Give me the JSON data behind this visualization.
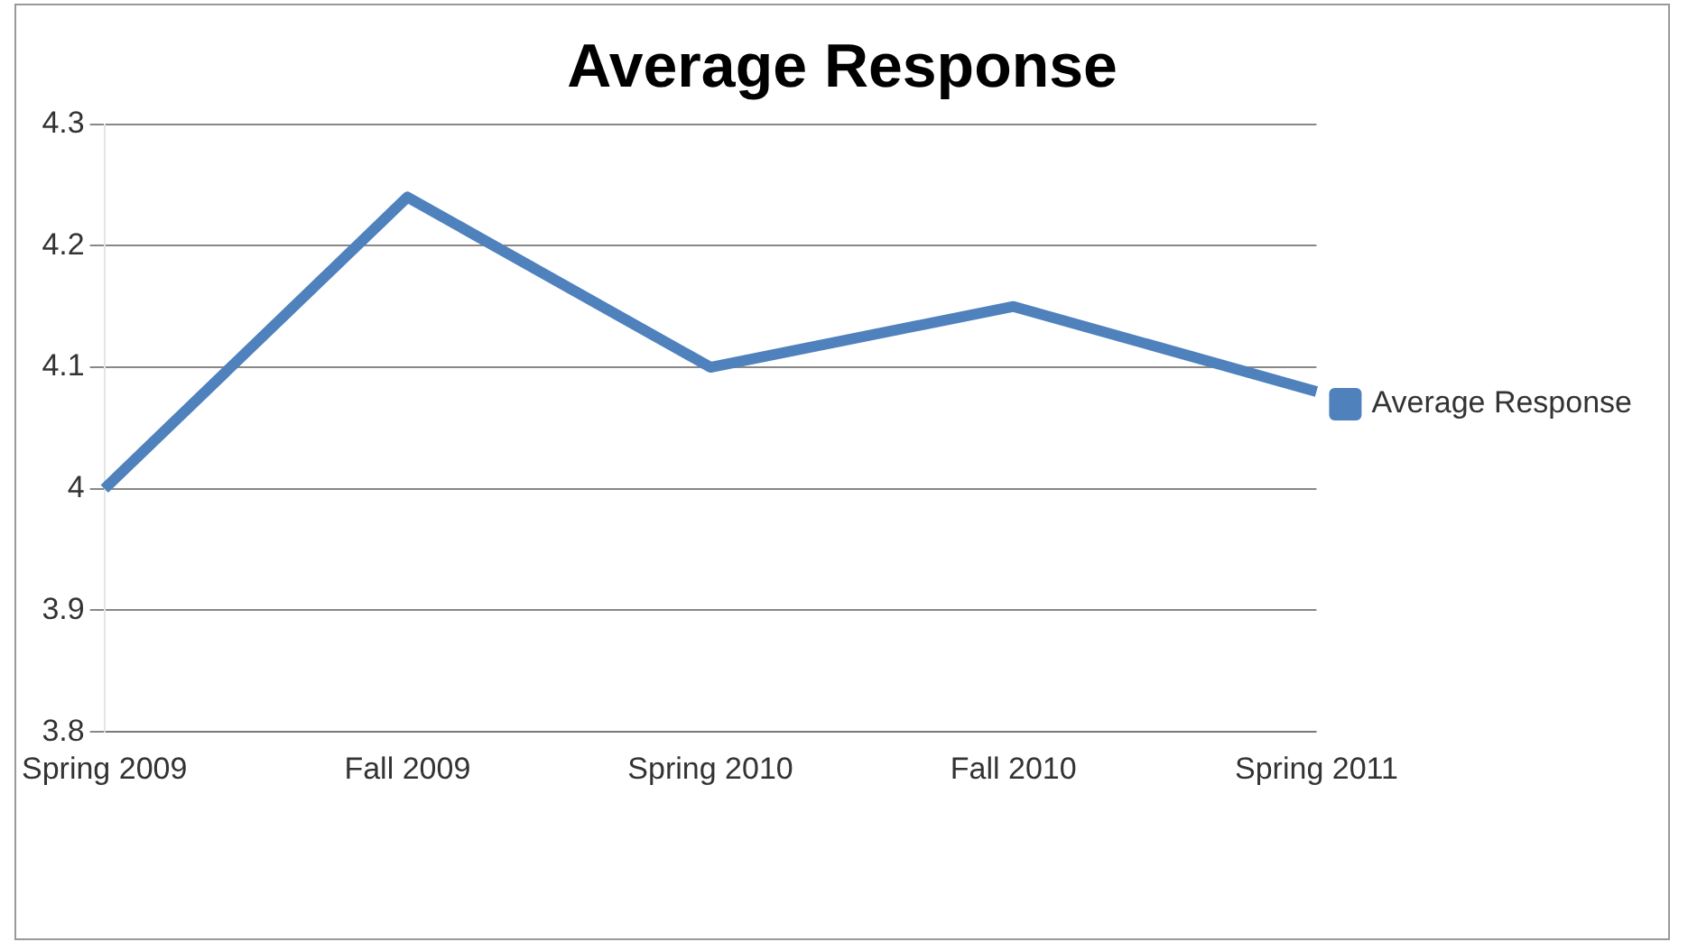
{
  "chart_data": {
    "type": "line",
    "title": "Average Response",
    "categories": [
      "Spring 2009",
      "Fall 2009",
      "Spring 2010",
      "Fall 2010",
      "Spring 2011"
    ],
    "series": [
      {
        "name": "Average Response",
        "color": "#4f81bd",
        "values": [
          4.0,
          4.24,
          4.1,
          4.15,
          4.08
        ]
      }
    ],
    "ylim": [
      3.8,
      4.3
    ],
    "yticks": [
      3.8,
      3.9,
      4,
      4.1,
      4.2,
      4.3
    ],
    "grid": "y",
    "legend": "right",
    "marker": "none"
  }
}
